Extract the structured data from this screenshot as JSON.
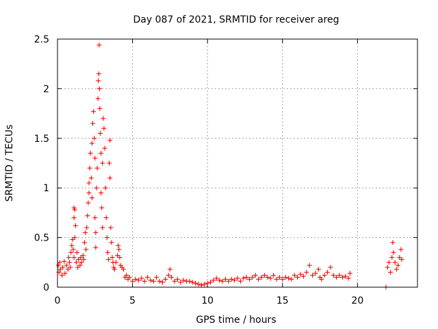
{
  "chart_data": {
    "type": "scatter",
    "title": "Day 087 of 2021, SRMTID for receiver areg",
    "xlabel": "GPS time / hours",
    "ylabel": "SRMTID / TECUs",
    "xlim": [
      0,
      24
    ],
    "ylim": [
      0,
      2.5
    ],
    "xticks": [
      0,
      5,
      10,
      15,
      20
    ],
    "xtick_labels": [
      "0",
      "5",
      "10",
      "15",
      "20"
    ],
    "yticks": [
      0,
      0.5,
      1,
      1.5,
      2,
      2.5
    ],
    "ytick_labels": [
      "0",
      "0.5",
      "1",
      "1.5",
      "2",
      "2.5"
    ],
    "grid": true,
    "marker": "+",
    "series": [
      {
        "name": "SRMTID",
        "color": "#ff0000",
        "points": [
          [
            0.05,
            0.22
          ],
          [
            0.1,
            0.15
          ],
          [
            0.15,
            0.25
          ],
          [
            0.2,
            0.18
          ],
          [
            0.3,
            0.12
          ],
          [
            0.35,
            0.2
          ],
          [
            0.45,
            0.26
          ],
          [
            0.5,
            0.14
          ],
          [
            0.6,
            0.22
          ],
          [
            0.7,
            0.18
          ],
          [
            0.75,
            0.3
          ],
          [
            0.8,
            0.25
          ],
          [
            0.85,
            0.2
          ],
          [
            0.9,
            0.35
          ],
          [
            0.95,
            0.42
          ],
          [
            1.0,
            0.48
          ],
          [
            1.05,
            0.38
          ],
          [
            1.1,
            0.3
          ],
          [
            1.15,
            0.5
          ],
          [
            1.2,
            0.62
          ],
          [
            1.1,
            0.7
          ],
          [
            1.1,
            0.8
          ],
          [
            1.15,
            0.78
          ],
          [
            1.25,
            0.25
          ],
          [
            1.3,
            0.35
          ],
          [
            1.35,
            0.2
          ],
          [
            1.4,
            0.28
          ],
          [
            1.5,
            0.22
          ],
          [
            1.55,
            0.3
          ],
          [
            1.6,
            0.25
          ],
          [
            1.7,
            0.32
          ],
          [
            1.75,
            0.28
          ],
          [
            1.8,
            0.45
          ],
          [
            1.85,
            0.55
          ],
          [
            1.9,
            0.38
          ],
          [
            1.95,
            0.6
          ],
          [
            2.0,
            0.72
          ],
          [
            2.05,
            0.85
          ],
          [
            2.1,
            0.95
          ],
          [
            2.1,
            1.05
          ],
          [
            2.15,
            1.2
          ],
          [
            2.2,
            1.35
          ],
          [
            2.25,
            1.1
          ],
          [
            2.3,
            0.9
          ],
          [
            2.3,
            1.45
          ],
          [
            2.35,
            1.65
          ],
          [
            2.4,
            1.77
          ],
          [
            2.45,
            1.5
          ],
          [
            2.5,
            1.3
          ],
          [
            2.5,
            0.7
          ],
          [
            2.55,
            0.55
          ],
          [
            2.55,
            0.4
          ],
          [
            2.6,
            1.0
          ],
          [
            2.65,
            1.2
          ],
          [
            2.7,
            1.9
          ],
          [
            2.72,
            2.08
          ],
          [
            2.75,
            2.15
          ],
          [
            2.78,
            2.44
          ],
          [
            2.8,
            2.0
          ],
          [
            2.82,
            1.8
          ],
          [
            2.85,
            1.55
          ],
          [
            2.9,
            1.35
          ],
          [
            2.9,
            0.95
          ],
          [
            2.95,
            0.8
          ],
          [
            3.0,
            0.6
          ],
          [
            3.0,
            1.25
          ],
          [
            3.05,
            1.7
          ],
          [
            3.1,
            1.6
          ],
          [
            3.15,
            1.4
          ],
          [
            3.2,
            1.0
          ],
          [
            3.25,
            0.7
          ],
          [
            3.3,
            0.5
          ],
          [
            3.35,
            0.35
          ],
          [
            3.4,
            0.28
          ],
          [
            3.45,
            1.25
          ],
          [
            3.5,
            1.48
          ],
          [
            3.5,
            1.1
          ],
          [
            3.55,
            0.6
          ],
          [
            3.6,
            0.45
          ],
          [
            3.65,
            0.3
          ],
          [
            3.7,
            0.25
          ],
          [
            3.75,
            0.2
          ],
          [
            3.8,
            0.18
          ],
          [
            3.9,
            0.25
          ],
          [
            4.0,
            0.32
          ],
          [
            4.05,
            0.42
          ],
          [
            4.1,
            0.38
          ],
          [
            4.15,
            0.3
          ],
          [
            4.2,
            0.22
          ],
          [
            4.3,
            0.2
          ],
          [
            4.4,
            0.18
          ],
          [
            4.5,
            0.1
          ],
          [
            4.6,
            0.12
          ],
          [
            4.7,
            0.08
          ],
          [
            4.8,
            0.1
          ],
          [
            5.0,
            0.06
          ],
          [
            5.2,
            0.08
          ],
          [
            5.4,
            0.07
          ],
          [
            5.6,
            0.09
          ],
          [
            5.8,
            0.06
          ],
          [
            6.0,
            0.1
          ],
          [
            6.2,
            0.07
          ],
          [
            6.4,
            0.06
          ],
          [
            6.6,
            0.1
          ],
          [
            6.8,
            0.06
          ],
          [
            7.0,
            0.05
          ],
          [
            7.2,
            0.08
          ],
          [
            7.4,
            0.12
          ],
          [
            7.5,
            0.18
          ],
          [
            7.6,
            0.1
          ],
          [
            7.8,
            0.06
          ],
          [
            8.0,
            0.08
          ],
          [
            8.2,
            0.05
          ],
          [
            8.4,
            0.07
          ],
          [
            8.6,
            0.06
          ],
          [
            8.8,
            0.06
          ],
          [
            9.0,
            0.05
          ],
          [
            9.2,
            0.04
          ],
          [
            9.4,
            0.03
          ],
          [
            9.6,
            0.02
          ],
          [
            9.8,
            0.03
          ],
          [
            10.0,
            0.04
          ],
          [
            10.2,
            0.05
          ],
          [
            10.4,
            0.07
          ],
          [
            10.6,
            0.09
          ],
          [
            10.8,
            0.07
          ],
          [
            11.0,
            0.06
          ],
          [
            11.2,
            0.08
          ],
          [
            11.4,
            0.06
          ],
          [
            11.6,
            0.08
          ],
          [
            11.8,
            0.07
          ],
          [
            12.0,
            0.09
          ],
          [
            12.2,
            0.06
          ],
          [
            12.4,
            0.09
          ],
          [
            12.6,
            0.1
          ],
          [
            12.8,
            0.08
          ],
          [
            13.0,
            0.1
          ],
          [
            13.2,
            0.12
          ],
          [
            13.4,
            0.08
          ],
          [
            13.6,
            0.1
          ],
          [
            13.8,
            0.12
          ],
          [
            14.0,
            0.1
          ],
          [
            14.2,
            0.09
          ],
          [
            14.4,
            0.12
          ],
          [
            14.6,
            0.08
          ],
          [
            14.8,
            0.1
          ],
          [
            15.0,
            0.08
          ],
          [
            15.2,
            0.1
          ],
          [
            15.4,
            0.09
          ],
          [
            15.6,
            0.08
          ],
          [
            15.8,
            0.12
          ],
          [
            16.0,
            0.1
          ],
          [
            16.2,
            0.13
          ],
          [
            16.4,
            0.11
          ],
          [
            16.6,
            0.15
          ],
          [
            16.8,
            0.22
          ],
          [
            17.0,
            0.12
          ],
          [
            17.2,
            0.14
          ],
          [
            17.4,
            0.18
          ],
          [
            17.5,
            0.1
          ],
          [
            17.6,
            0.08
          ],
          [
            17.8,
            0.12
          ],
          [
            18.0,
            0.15
          ],
          [
            18.2,
            0.2
          ],
          [
            18.4,
            0.12
          ],
          [
            18.6,
            0.1
          ],
          [
            18.8,
            0.12
          ],
          [
            19.0,
            0.1
          ],
          [
            19.2,
            0.11
          ],
          [
            19.4,
            0.09
          ],
          [
            19.5,
            0.14
          ],
          [
            21.9,
            0.0
          ],
          [
            22.0,
            0.2
          ],
          [
            22.1,
            0.25
          ],
          [
            22.2,
            0.15
          ],
          [
            22.3,
            0.3
          ],
          [
            22.35,
            0.45
          ],
          [
            22.4,
            0.35
          ],
          [
            22.5,
            0.25
          ],
          [
            22.6,
            0.18
          ],
          [
            22.7,
            0.22
          ],
          [
            22.8,
            0.3
          ],
          [
            22.9,
            0.38
          ],
          [
            22.95,
            0.28
          ]
        ]
      }
    ]
  }
}
